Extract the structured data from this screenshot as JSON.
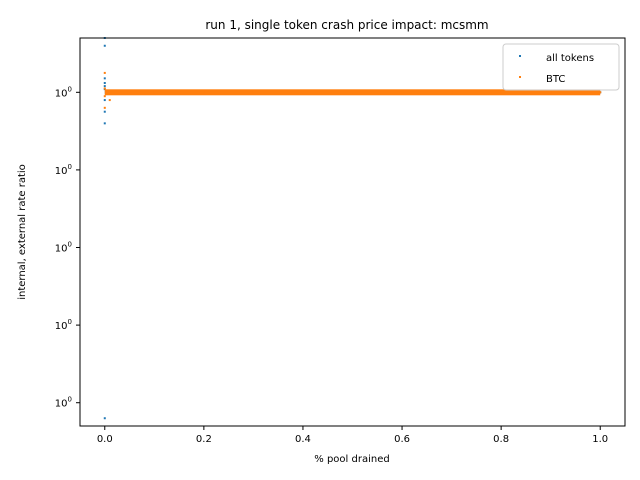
{
  "chart_data": {
    "type": "scatter",
    "title": "run 1, single token crash price impact: mcsmm",
    "xlabel": "% pool drained",
    "ylabel": "internal, external rate ratio",
    "xlim": [
      -0.05,
      1.05
    ],
    "yscale": "log",
    "x_ticks": [
      {
        "value": 0.0,
        "label": "0.0"
      },
      {
        "value": 0.2,
        "label": "0.2"
      },
      {
        "value": 0.4,
        "label": "0.4"
      },
      {
        "value": 0.6,
        "label": "0.6"
      },
      {
        "value": 0.8,
        "label": "0.8"
      },
      {
        "value": 1.0,
        "label": "1.0"
      }
    ],
    "y_ticks": [
      {
        "value": 1.0,
        "label": "10^0"
      },
      {
        "value": 0.9999,
        "label": "10^0"
      },
      {
        "value": 0.9998,
        "label": "10^0"
      },
      {
        "value": 0.9997,
        "label": "10^0"
      },
      {
        "value": 0.9996,
        "label": "10^0"
      }
    ],
    "ylim": [
      0.99957,
      1.00007
    ],
    "grid": false,
    "legend_position": "top-right",
    "series": [
      {
        "name": "all tokens",
        "color": "#1f77b4",
        "points": [
          [
            0.0,
            1.00007
          ],
          [
            0.0,
            1.00006
          ],
          [
            0.0,
            1.000018
          ],
          [
            0.0,
            1.000012
          ],
          [
            0.0,
            1.000008
          ],
          [
            0.0,
            1.000004
          ],
          [
            0.0,
            0.99999
          ],
          [
            0.0,
            0.999975
          ],
          [
            0.0,
            0.99996
          ],
          [
            0.0,
            0.99958
          ],
          [
            0.05,
            1.0
          ],
          [
            0.1,
            1.0
          ],
          [
            0.15,
            1.0
          ],
          [
            0.2,
            1.0
          ],
          [
            0.25,
            1.0
          ],
          [
            0.3,
            1.000002
          ],
          [
            0.35,
            1.000001
          ],
          [
            0.4,
            1.000002
          ],
          [
            0.45,
            1.000001
          ],
          [
            0.5,
            1.000002
          ],
          [
            0.55,
            1.000001
          ],
          [
            0.6,
            1.000002
          ],
          [
            0.65,
            1.000001
          ],
          [
            0.7,
            1.000002
          ],
          [
            0.75,
            1.000001
          ],
          [
            0.8,
            1.000002
          ],
          [
            0.85,
            1.000001
          ],
          [
            0.9,
            1.000002
          ],
          [
            0.95,
            1.000001
          ],
          [
            1.0,
            1.0
          ]
        ]
      },
      {
        "name": "BTC",
        "color": "#ff7f0e",
        "points": [
          [
            0.0,
            1.000025
          ],
          [
            0.0,
            1.000005
          ],
          [
            0.0,
            0.999995
          ],
          [
            0.0,
            0.99998
          ],
          [
            0.01,
            0.99999
          ],
          [
            0.1,
            1.0
          ],
          [
            0.2,
            1.0
          ],
          [
            0.3,
            1.0
          ],
          [
            0.4,
            1.0
          ],
          [
            0.5,
            1.0
          ],
          [
            0.6,
            1.0
          ],
          [
            0.7,
            1.0
          ],
          [
            0.8,
            1.0
          ],
          [
            0.9,
            1.0
          ],
          [
            1.0,
            1.0
          ]
        ]
      }
    ]
  }
}
